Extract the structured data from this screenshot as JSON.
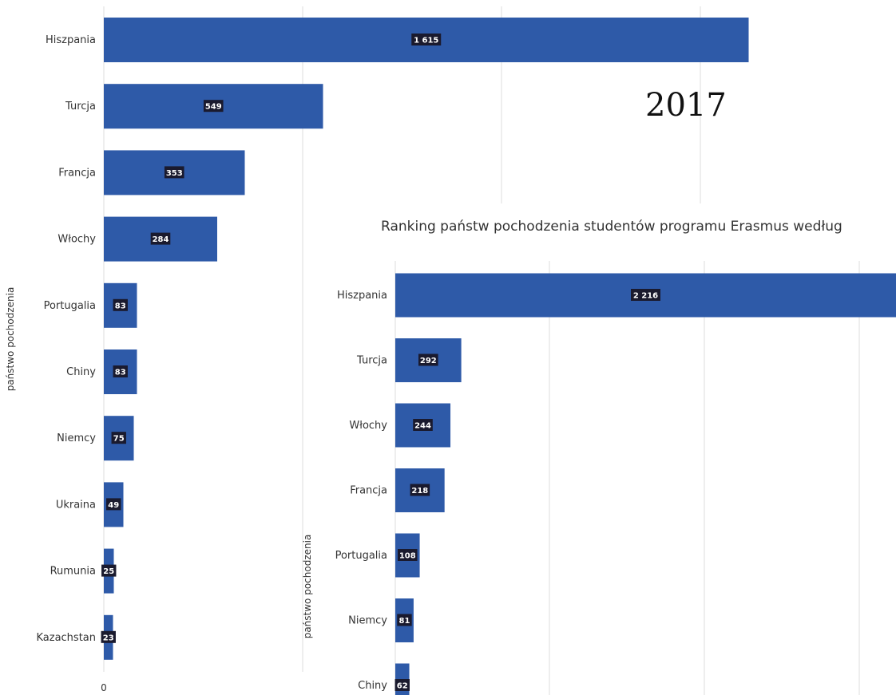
{
  "chart_data": [
    {
      "type": "bar",
      "orientation": "horizontal",
      "annotation": "2017",
      "ylabel": "państwo pochodzenia",
      "x_tick_labels": [
        "0"
      ],
      "xlim": [
        0,
        1800
      ],
      "grid": true,
      "categories": [
        "Hiszpania",
        "Turcja",
        "Francja",
        "Włochy",
        "Portugalia",
        "Chiny",
        "Niemcy",
        "Ukraina",
        "Rumunia",
        "Kazachstan"
      ],
      "values": [
        1615,
        549,
        353,
        284,
        83,
        83,
        75,
        49,
        25,
        23
      ],
      "value_labels": [
        "1 615",
        "549",
        "353",
        "284",
        "83",
        "83",
        "75",
        "49",
        "25",
        "23"
      ],
      "bar_color": "#2e5aa8",
      "label_bg": "#1a1a2e"
    },
    {
      "type": "bar",
      "orientation": "horizontal",
      "title": "Ranking państw pochodzenia studentów programu Erasmus według",
      "ylabel": "państwo pochodzenia",
      "xlim": [
        0,
        2216
      ],
      "grid": true,
      "categories": [
        "Hiszpania",
        "Turcja",
        "Włochy",
        "Francja",
        "Portugalia",
        "Niemcy",
        "Chiny"
      ],
      "values": [
        2216,
        292,
        244,
        218,
        108,
        81,
        62
      ],
      "value_labels": [
        "2 216",
        "292",
        "244",
        "218",
        "108",
        "81",
        "62"
      ],
      "bar_color": "#2e5aa8",
      "label_bg": "#1a1a2e"
    }
  ]
}
